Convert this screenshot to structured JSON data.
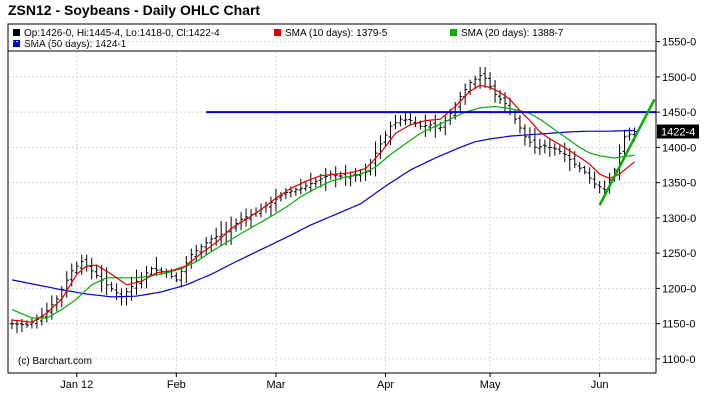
{
  "chart_data": {
    "type": "ohlc",
    "title": "ZSN12 - Soybeans - Daily OHLC Chart",
    "legend": {
      "ohlc": "Op:1426-0, Hi:1445-4, Lo:1418-0, Cl:1422-4",
      "sma10": "SMA (10 days): 1379-5",
      "sma20": "SMA (20 days): 1388-7",
      "sma50": "SMA (50 days): 1424-1"
    },
    "colors": {
      "ohlc": "#000000",
      "sma10": "#e00000",
      "sma20": "#00b000",
      "sma50": "#0000cc",
      "hline": "#0000cc",
      "trendline": "#00b000",
      "grid": "#d8d8d8"
    },
    "ylim": [
      1080,
      1575
    ],
    "y_ticks": [
      "1100-0",
      "1150-0",
      "1200-0",
      "1250-0",
      "1300-0",
      "1350-0",
      "1400-0",
      "1450-0",
      "1500-0",
      "1550-0"
    ],
    "y_tick_values": [
      1100,
      1150,
      1200,
      1250,
      1300,
      1350,
      1400,
      1450,
      1500,
      1550
    ],
    "x_labels": [
      "Jan 12",
      "Feb",
      "Mar",
      "Apr",
      "May",
      "Jun"
    ],
    "x_label_index": [
      13,
      33,
      53,
      75,
      96,
      118
    ],
    "last_value_label": "1422-4",
    "last_value": 1422.5,
    "watermark": "(c) Barchart.com",
    "close_anchors": [
      [
        0,
        1150
      ],
      [
        3,
        1148
      ],
      [
        6,
        1160
      ],
      [
        9,
        1185
      ],
      [
        12,
        1225
      ],
      [
        14,
        1238
      ],
      [
        16,
        1225
      ],
      [
        19,
        1205
      ],
      [
        22,
        1188
      ],
      [
        25,
        1210
      ],
      [
        28,
        1228
      ],
      [
        31,
        1222
      ],
      [
        33,
        1212
      ],
      [
        36,
        1248
      ],
      [
        40,
        1270
      ],
      [
        43,
        1280
      ],
      [
        46,
        1298
      ],
      [
        49,
        1308
      ],
      [
        52,
        1322
      ],
      [
        55,
        1336
      ],
      [
        58,
        1342
      ],
      [
        61,
        1352
      ],
      [
        64,
        1362
      ],
      [
        67,
        1358
      ],
      [
        69,
        1360
      ],
      [
        71,
        1365
      ],
      [
        74,
        1405
      ],
      [
        76,
        1430
      ],
      [
        78,
        1440
      ],
      [
        80,
        1438
      ],
      [
        82,
        1430
      ],
      [
        84,
        1432
      ],
      [
        86,
        1428
      ],
      [
        88,
        1448
      ],
      [
        90,
        1472
      ],
      [
        92,
        1492
      ],
      [
        94,
        1502
      ],
      [
        95,
        1498
      ],
      [
        97,
        1475
      ],
      [
        99,
        1462
      ],
      [
        101,
        1440
      ],
      [
        103,
        1415
      ],
      [
        105,
        1400
      ],
      [
        107,
        1402
      ],
      [
        109,
        1398
      ],
      [
        111,
        1390
      ],
      [
        113,
        1376
      ],
      [
        115,
        1365
      ],
      [
        117,
        1348
      ],
      [
        119,
        1340
      ],
      [
        121,
        1368
      ],
      [
        123,
        1415
      ],
      [
        125,
        1422.5
      ]
    ],
    "sma10_anchors": [
      [
        0,
        1155
      ],
      [
        4,
        1152
      ],
      [
        7,
        1165
      ],
      [
        10,
        1185
      ],
      [
        13,
        1220
      ],
      [
        15,
        1232
      ],
      [
        17,
        1233
      ],
      [
        20,
        1220
      ],
      [
        23,
        1205
      ],
      [
        26,
        1210
      ],
      [
        29,
        1222
      ],
      [
        32,
        1225
      ],
      [
        35,
        1232
      ],
      [
        38,
        1250
      ],
      [
        41,
        1265
      ],
      [
        44,
        1285
      ],
      [
        47,
        1298
      ],
      [
        50,
        1312
      ],
      [
        53,
        1328
      ],
      [
        56,
        1342
      ],
      [
        59,
        1352
      ],
      [
        62,
        1360
      ],
      [
        65,
        1362
      ],
      [
        68,
        1364
      ],
      [
        71,
        1370
      ],
      [
        74,
        1392
      ],
      [
        77,
        1420
      ],
      [
        80,
        1432
      ],
      [
        83,
        1438
      ],
      [
        86,
        1440
      ],
      [
        89,
        1458
      ],
      [
        92,
        1480
      ],
      [
        94,
        1488
      ],
      [
        96,
        1485
      ],
      [
        98,
        1478
      ],
      [
        100,
        1468
      ],
      [
        102,
        1452
      ],
      [
        104,
        1438
      ],
      [
        106,
        1422
      ],
      [
        108,
        1412
      ],
      [
        110,
        1404
      ],
      [
        112,
        1395
      ],
      [
        114,
        1386
      ],
      [
        116,
        1376
      ],
      [
        118,
        1362
      ],
      [
        120,
        1356
      ],
      [
        122,
        1362
      ],
      [
        125,
        1379.6
      ]
    ],
    "sma20_anchors": [
      [
        0,
        1170
      ],
      [
        4,
        1158
      ],
      [
        7,
        1158
      ],
      [
        10,
        1170
      ],
      [
        13,
        1185
      ],
      [
        16,
        1205
      ],
      [
        19,
        1215
      ],
      [
        22,
        1215
      ],
      [
        25,
        1215
      ],
      [
        28,
        1218
      ],
      [
        31,
        1222
      ],
      [
        34,
        1228
      ],
      [
        37,
        1238
      ],
      [
        40,
        1252
      ],
      [
        43,
        1265
      ],
      [
        46,
        1278
      ],
      [
        49,
        1290
      ],
      [
        52,
        1302
      ],
      [
        55,
        1315
      ],
      [
        58,
        1330
      ],
      [
        61,
        1342
      ],
      [
        64,
        1352
      ],
      [
        67,
        1358
      ],
      [
        70,
        1362
      ],
      [
        73,
        1372
      ],
      [
        76,
        1390
      ],
      [
        79,
        1405
      ],
      [
        82,
        1420
      ],
      [
        85,
        1430
      ],
      [
        88,
        1440
      ],
      [
        91,
        1450
      ],
      [
        94,
        1456
      ],
      [
        97,
        1458
      ],
      [
        100,
        1455
      ],
      [
        102,
        1452
      ],
      [
        104,
        1448
      ],
      [
        106,
        1440
      ],
      [
        108,
        1430
      ],
      [
        110,
        1420
      ],
      [
        112,
        1410
      ],
      [
        114,
        1400
      ],
      [
        116,
        1392
      ],
      [
        118,
        1388
      ],
      [
        121,
        1385
      ],
      [
        125,
        1388.9
      ]
    ],
    "sma50_anchors": [
      [
        0,
        1212
      ],
      [
        5,
        1205
      ],
      [
        10,
        1198
      ],
      [
        15,
        1192
      ],
      [
        20,
        1188
      ],
      [
        25,
        1189
      ],
      [
        30,
        1195
      ],
      [
        35,
        1205
      ],
      [
        40,
        1220
      ],
      [
        45,
        1238
      ],
      [
        50,
        1255
      ],
      [
        55,
        1272
      ],
      [
        60,
        1290
      ],
      [
        65,
        1305
      ],
      [
        70,
        1320
      ],
      [
        75,
        1345
      ],
      [
        80,
        1368
      ],
      [
        85,
        1385
      ],
      [
        90,
        1400
      ],
      [
        93,
        1408
      ],
      [
        96,
        1412
      ],
      [
        100,
        1416
      ],
      [
        104,
        1418
      ],
      [
        108,
        1420
      ],
      [
        112,
        1422
      ],
      [
        116,
        1423
      ],
      [
        120,
        1423
      ],
      [
        125,
        1424.1
      ]
    ],
    "horizontal_line": {
      "value": 1450,
      "from_index": 39,
      "to_index": 130
    },
    "trendline": {
      "from": [
        118,
        1318
      ],
      "to": [
        129,
        1468
      ]
    }
  }
}
